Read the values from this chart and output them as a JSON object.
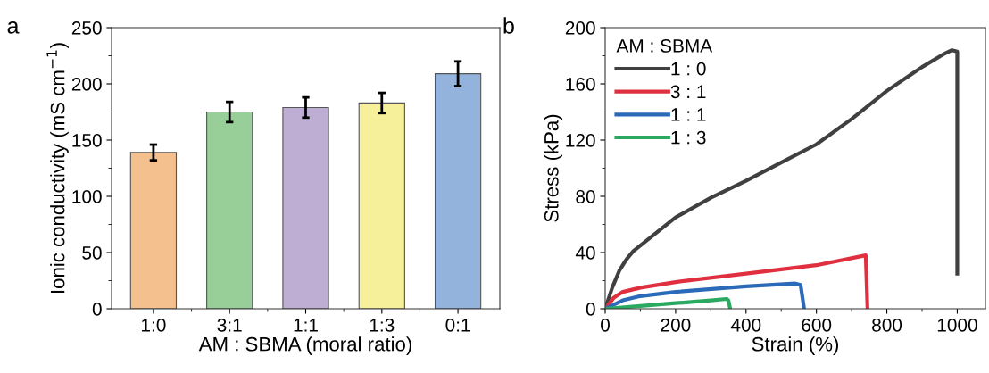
{
  "chart_data": [
    {
      "type": "bar",
      "annotations": [
        "a"
      ],
      "xlabel": "AM : SBMA (moral ratio)",
      "ylabel": "Ionic conductivity (mS cm$^{−1}$)",
      "categories": [
        "1:0",
        "3:1",
        "1:1",
        "1:3",
        "0:1"
      ],
      "values": [
        139,
        175,
        179,
        183,
        209
      ],
      "errors": [
        7,
        9,
        9,
        9,
        11
      ],
      "colors": [
        "#f4c08e",
        "#98cf98",
        "#bfaed4",
        "#f7f09a",
        "#93b3dc"
      ],
      "ylim": [
        0,
        250
      ],
      "yticks": [
        0,
        50,
        100,
        150,
        200,
        250
      ],
      "grid": false
    },
    {
      "type": "line",
      "annotations": [
        "b"
      ],
      "xlabel": "Strain (%)",
      "ylabel": "Stress (kPa)",
      "legend_title": "AM : SBMA",
      "legend": "top left",
      "grid": false,
      "line_style": "solid",
      "marker": "none",
      "xlim": [
        0,
        1080
      ],
      "xticks": [
        0,
        200,
        400,
        600,
        800,
        1000
      ],
      "ylim": [
        0,
        200
      ],
      "yticks": [
        0,
        40,
        80,
        120,
        160,
        200
      ],
      "series": [
        {
          "name": "1 : 0",
          "color": "#404040",
          "x": [
            0,
            20,
            40,
            60,
            80,
            100,
            150,
            200,
            300,
            400,
            500,
            600,
            700,
            800,
            900,
            960,
            985,
            1000,
            1000
          ],
          "values": [
            0,
            15,
            27,
            35,
            41,
            45,
            55,
            65,
            79,
            91,
            104,
            117,
            135,
            155,
            172,
            181,
            184,
            183,
            25
          ]
        },
        {
          "name": "3 : 1",
          "color": "#e03040",
          "x": [
            0,
            25,
            50,
            100,
            200,
            400,
            600,
            740,
            745
          ],
          "values": [
            0,
            8,
            12,
            15,
            19,
            25,
            31,
            38,
            0
          ]
        },
        {
          "name": "1 : 1",
          "color": "#2a6ab8",
          "x": [
            0,
            50,
            100,
            200,
            400,
            540,
            555,
            565
          ],
          "values": [
            0,
            6,
            9,
            12,
            16,
            18,
            17,
            0
          ]
        },
        {
          "name": "1 : 3",
          "color": "#2aaa60",
          "x": [
            0,
            100,
            200,
            300,
            345,
            350,
            355
          ],
          "values": [
            0,
            2,
            4,
            6,
            7,
            6,
            0
          ]
        }
      ]
    }
  ]
}
